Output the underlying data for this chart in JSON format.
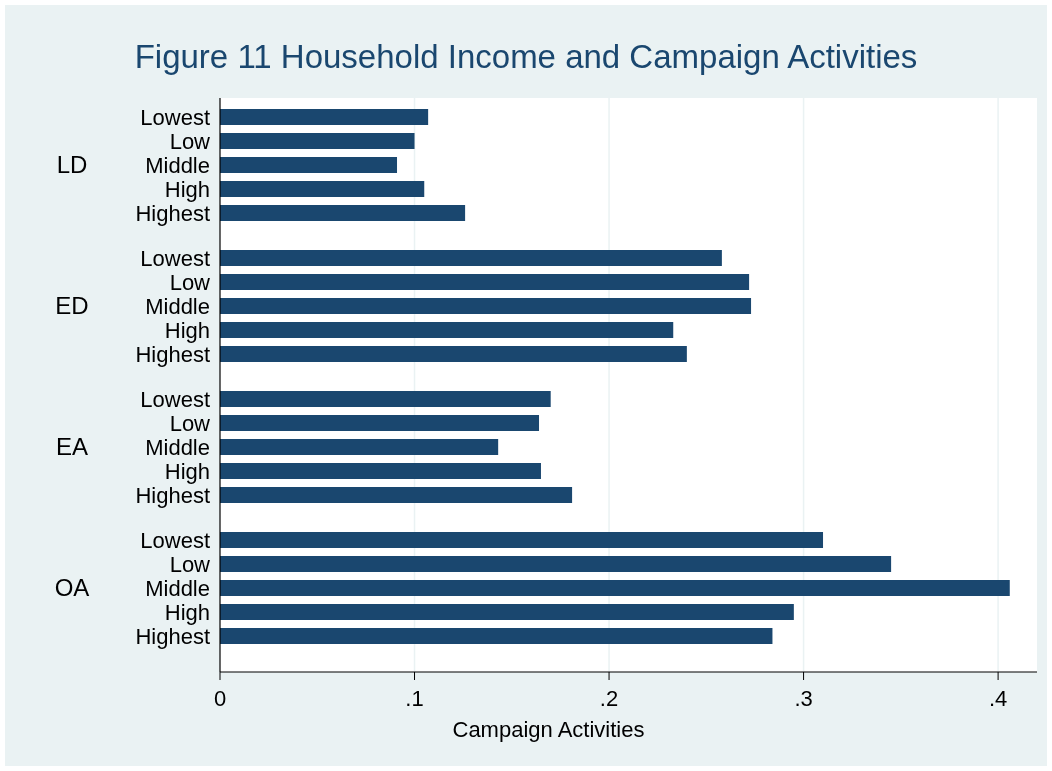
{
  "chart_data": {
    "type": "bar",
    "orientation": "horizontal",
    "title": "Figure 11 Household Income and Campaign Activities",
    "xlabel": "Campaign Activities",
    "categories": [
      "Lowest",
      "Low",
      "Middle",
      "High",
      "Highest",
      "Lowest",
      "Low",
      "Middle",
      "High",
      "Highest",
      "Lowest",
      "Low",
      "Middle",
      "High",
      "Highest",
      "Lowest",
      "Low",
      "Middle",
      "High",
      "Highest"
    ],
    "values": [
      0.107,
      0.1,
      0.091,
      0.105,
      0.126,
      0.258,
      0.272,
      0.273,
      0.233,
      0.24,
      0.17,
      0.164,
      0.143,
      0.165,
      0.181,
      0.31,
      0.345,
      0.406,
      0.295,
      0.284
    ],
    "color": "#1a476f",
    "annotations": [
      "LD",
      "ED",
      "EA",
      "OA"
    ],
    "xlim": [
      0,
      0.42
    ],
    "xticks": [
      {
        "value": 0,
        "label": "0"
      },
      {
        "value": 0.1,
        "label": ".1"
      },
      {
        "value": 0.2,
        "label": ".2"
      },
      {
        "value": 0.3,
        "label": ".3"
      },
      {
        "value": 0.4,
        "label": ".4"
      }
    ],
    "grid": "x"
  }
}
